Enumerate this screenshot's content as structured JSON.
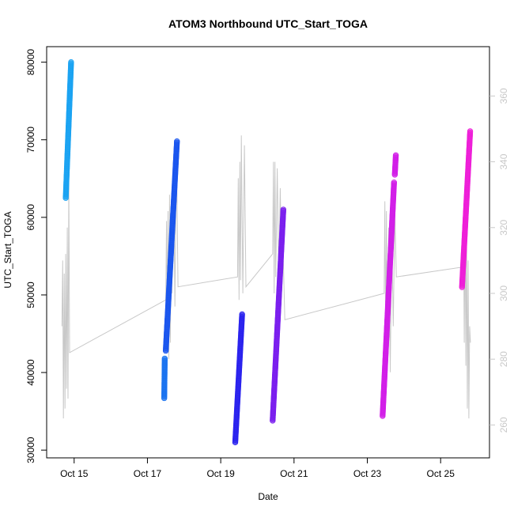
{
  "chart_data": {
    "type": "scatter",
    "title": "ATOM3 Northbound UTC_Start_TOGA",
    "xlabel": "Date",
    "ylabel": "UTC_Start_TOGA",
    "y2label": "",
    "xlim": [
      "2016-10-14 06:00",
      "2016-10-26 08:00"
    ],
    "ylim": [
      29000,
      82000
    ],
    "y2lim": [
      250,
      375
    ],
    "x_ticks": [
      {
        "date": "2016-10-15",
        "label": "Oct 15"
      },
      {
        "date": "2016-10-17",
        "label": "Oct 17"
      },
      {
        "date": "2016-10-19",
        "label": "Oct 19"
      },
      {
        "date": "2016-10-21",
        "label": "Oct 21"
      },
      {
        "date": "2016-10-23",
        "label": "Oct 23"
      },
      {
        "date": "2016-10-25",
        "label": "Oct 25"
      }
    ],
    "y_ticks": [
      30000,
      40000,
      50000,
      60000,
      70000,
      80000
    ],
    "y2_ticks": [
      260,
      280,
      300,
      320,
      340,
      360
    ],
    "colors": {
      "axis": "#000000",
      "secondary_axis": "#c8c8c8",
      "secondary_line": "#c8c8c8"
    },
    "series": [
      {
        "color": "#1aa3f2",
        "points": [
          [
            "2016-10-14 18:30",
            62500
          ],
          [
            "2016-10-14 22:00",
            80000
          ]
        ]
      },
      {
        "color": "#1a73f0",
        "points": [
          [
            "2016-10-17 11:00",
            36700
          ],
          [
            "2016-10-17 11:20",
            41800
          ]
        ]
      },
      {
        "color": "#1a55ee",
        "points": [
          [
            "2016-10-17 12:00",
            42800
          ],
          [
            "2016-10-17 19:20",
            69800
          ]
        ]
      },
      {
        "color": "#2a22ee",
        "points": [
          [
            "2016-10-19 09:30",
            31000
          ],
          [
            "2016-10-19 14:00",
            47500
          ]
        ]
      },
      {
        "color": "#7a1eee",
        "points": [
          [
            "2016-10-20 10:00",
            33800
          ],
          [
            "2016-10-20 17:00",
            61000
          ]
        ]
      },
      {
        "color": "#d21ee8",
        "points": [
          [
            "2016-10-23 10:00",
            34400
          ],
          [
            "2016-10-23 17:30",
            64500
          ]
        ]
      },
      {
        "color": "#d21ee8",
        "points": [
          [
            "2016-10-23 18:00",
            65500
          ],
          [
            "2016-10-23 18:40",
            68000
          ]
        ]
      },
      {
        "color": "#ee1ed8",
        "points": [
          [
            "2016-10-25 14:00",
            51000
          ],
          [
            "2016-10-25 19:20",
            71100
          ]
        ]
      }
    ],
    "secondary_line": [
      [
        "2016-10-14 16:00",
        290
      ],
      [
        "2016-10-14 16:30",
        310
      ],
      [
        "2016-10-14 17:00",
        262
      ],
      [
        "2016-10-14 17:30",
        306
      ],
      [
        "2016-10-14 18:00",
        265
      ],
      [
        "2016-10-14 18:30",
        312
      ],
      [
        "2016-10-14 19:00",
        271
      ],
      [
        "2016-10-14 19:30",
        320
      ],
      [
        "2016-10-14 20:00",
        268
      ],
      [
        "2016-10-14 20:30",
        335
      ],
      [
        "2016-10-14 21:00",
        282
      ],
      [
        "2016-10-17 12:00",
        298
      ],
      [
        "2016-10-17 12:30",
        322
      ],
      [
        "2016-10-17 13:00",
        290
      ],
      [
        "2016-10-17 13:30",
        325
      ],
      [
        "2016-10-17 14:00",
        280
      ],
      [
        "2016-10-17 14:30",
        330
      ],
      [
        "2016-10-17 15:00",
        285
      ],
      [
        "2016-10-17 15:30",
        315
      ],
      [
        "2016-10-17 16:00",
        300
      ],
      [
        "2016-10-17 17:00",
        340
      ],
      [
        "2016-10-17 18:00",
        296
      ],
      [
        "2016-10-17 19:00",
        345
      ],
      [
        "2016-10-17 20:00",
        302
      ],
      [
        "2016-10-19 11:00",
        305
      ],
      [
        "2016-10-19 11:30",
        335
      ],
      [
        "2016-10-19 12:00",
        298
      ],
      [
        "2016-10-19 12:30",
        340
      ],
      [
        "2016-10-19 13:00",
        304
      ],
      [
        "2016-10-19 13:30",
        348
      ],
      [
        "2016-10-19 14:30",
        300
      ],
      [
        "2016-10-19 15:30",
        345
      ],
      [
        "2016-10-19 16:30",
        302
      ],
      [
        "2016-10-20 10:00",
        312
      ],
      [
        "2016-10-20 10:30",
        340
      ],
      [
        "2016-10-20 11:00",
        300
      ],
      [
        "2016-10-20 11:30",
        340
      ],
      [
        "2016-10-20 12:00",
        305
      ],
      [
        "2016-10-20 13:00",
        338
      ],
      [
        "2016-10-20 14:00",
        305
      ],
      [
        "2016-10-20 15:00",
        332
      ],
      [
        "2016-10-20 16:00",
        304
      ],
      [
        "2016-10-20 17:00",
        310
      ],
      [
        "2016-10-20 18:00",
        292
      ],
      [
        "2016-10-23 11:00",
        300
      ],
      [
        "2016-10-23 11:30",
        328
      ],
      [
        "2016-10-23 12:00",
        286
      ],
      [
        "2016-10-23 12:30",
        325
      ],
      [
        "2016-10-23 13:00",
        278
      ],
      [
        "2016-10-23 14:00",
        320
      ],
      [
        "2016-10-23 15:00",
        276
      ],
      [
        "2016-10-23 16:00",
        318
      ],
      [
        "2016-10-23 17:00",
        290
      ],
      [
        "2016-10-23 18:00",
        325
      ],
      [
        "2016-10-23 19:00",
        305
      ],
      [
        "2016-10-25 14:30",
        308
      ],
      [
        "2016-10-25 15:00",
        322
      ],
      [
        "2016-10-25 15:30",
        285
      ],
      [
        "2016-10-25 16:00",
        326
      ],
      [
        "2016-10-25 16:30",
        278
      ],
      [
        "2016-10-25 17:00",
        320
      ],
      [
        "2016-10-25 17:30",
        265
      ],
      [
        "2016-10-25 18:00",
        310
      ],
      [
        "2016-10-25 18:30",
        262
      ],
      [
        "2016-10-25 19:00",
        290
      ],
      [
        "2016-10-25 19:30",
        285
      ]
    ]
  }
}
